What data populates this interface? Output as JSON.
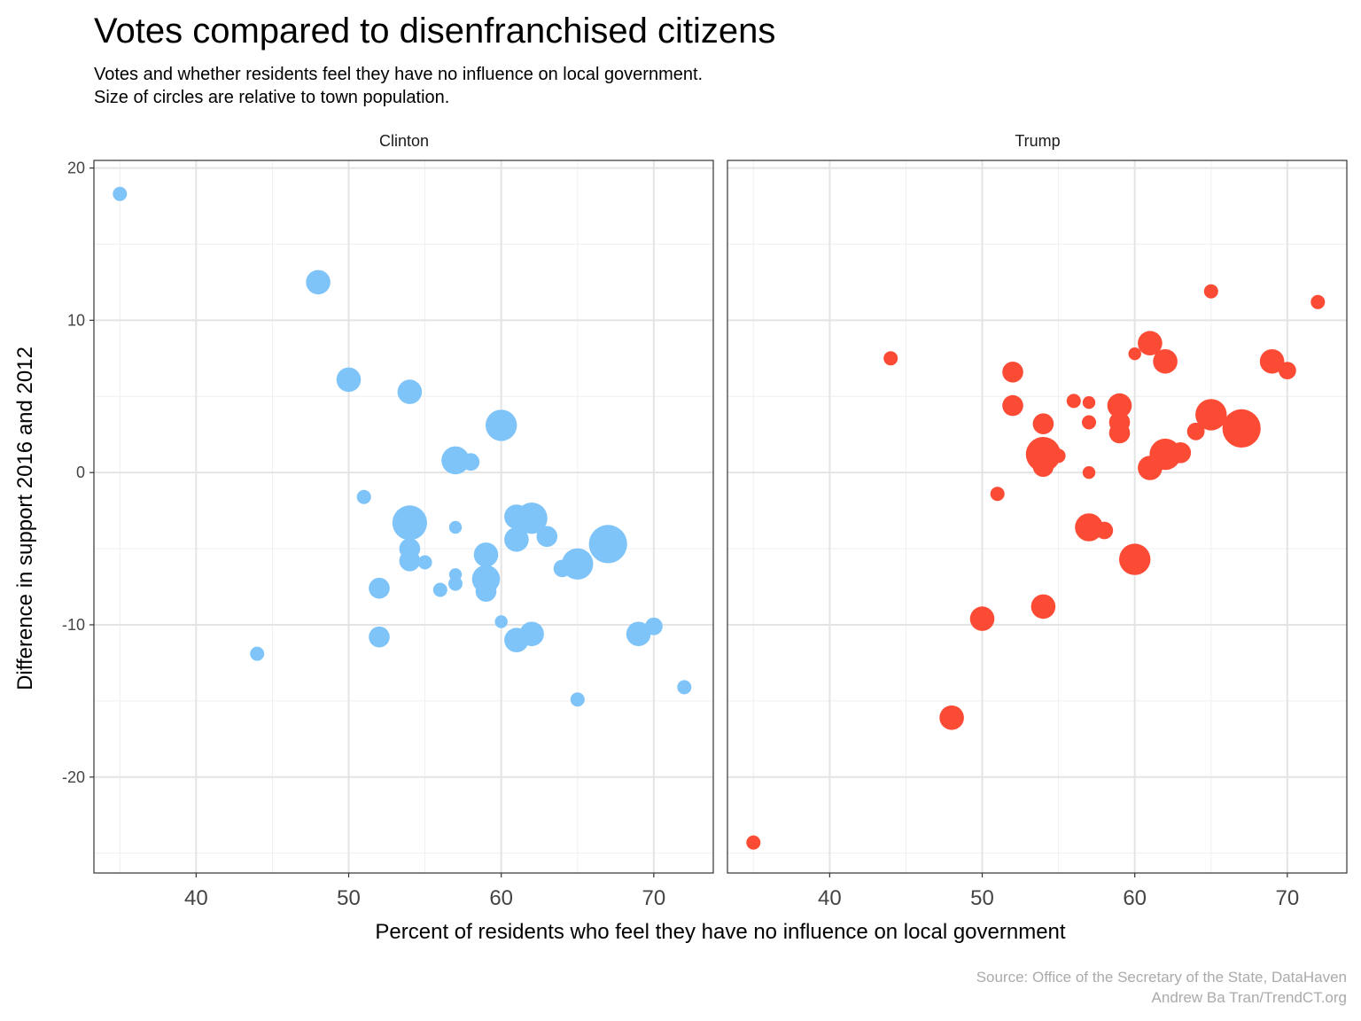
{
  "chart_data": {
    "type": "scatter",
    "title": "Votes compared to disenfranchised citizens",
    "subtitle": [
      "Votes and whether residents feel they have no influence on local government.",
      "Size of circles are relative to town population."
    ],
    "xlabel": "Percent of residents who feel they have no influence on local government",
    "ylabel": "Difference in support 2016 and 2012",
    "xlim": [
      33.3,
      73.9
    ],
    "ylim": [
      -26.3,
      20.5
    ],
    "x_ticks": [
      40,
      50,
      60,
      70
    ],
    "x_tick_labels": [
      "40",
      "50",
      "60",
      "70"
    ],
    "y_ticks": [
      20,
      10,
      0,
      -10,
      -20
    ],
    "y_tick_labels": [
      "20",
      "10",
      "0",
      "-10",
      "-20"
    ],
    "grid": true,
    "size_encoding": "relative town population (1 = smallest, 5 = largest)",
    "caption": [
      "Source: Office of the Secretary of the State, DataHaven",
      "Andrew Ba Tran/TrendCT.org"
    ],
    "panels": [
      {
        "name": "Clinton",
        "color": "#7fc4f9",
        "points": [
          {
            "x": 35,
            "y": 18.3,
            "size": 1.5
          },
          {
            "x": 48,
            "y": 12.5,
            "size": 3
          },
          {
            "x": 50,
            "y": 6.1,
            "size": 3
          },
          {
            "x": 54,
            "y": 5.3,
            "size": 3
          },
          {
            "x": 60,
            "y": 3.1,
            "size": 4
          },
          {
            "x": 57,
            "y": 0.8,
            "size": 3.5
          },
          {
            "x": 58,
            "y": 0.7,
            "size": 2
          },
          {
            "x": 51,
            "y": -1.6,
            "size": 1.5
          },
          {
            "x": 54,
            "y": -3.3,
            "size": 4.5
          },
          {
            "x": 57,
            "y": -3.6,
            "size": 1.3
          },
          {
            "x": 61,
            "y": -2.9,
            "size": 3
          },
          {
            "x": 62,
            "y": -3.0,
            "size": 4
          },
          {
            "x": 61,
            "y": -4.4,
            "size": 3
          },
          {
            "x": 63,
            "y": -4.2,
            "size": 2.5
          },
          {
            "x": 67,
            "y": -4.7,
            "size": 5
          },
          {
            "x": 54,
            "y": -5.0,
            "size": 2.5
          },
          {
            "x": 54,
            "y": -5.8,
            "size": 2.5
          },
          {
            "x": 55,
            "y": -5.9,
            "size": 1.5
          },
          {
            "x": 59,
            "y": -5.4,
            "size": 3
          },
          {
            "x": 64,
            "y": -6.3,
            "size": 2
          },
          {
            "x": 65,
            "y": -6.0,
            "size": 4
          },
          {
            "x": 57,
            "y": -6.7,
            "size": 1.3
          },
          {
            "x": 59,
            "y": -7.0,
            "size": 3.5
          },
          {
            "x": 52,
            "y": -7.6,
            "size": 2.5
          },
          {
            "x": 56,
            "y": -7.7,
            "size": 1.5
          },
          {
            "x": 57,
            "y": -7.3,
            "size": 1.5
          },
          {
            "x": 59,
            "y": -7.8,
            "size": 2.5
          },
          {
            "x": 60,
            "y": -9.8,
            "size": 1.3
          },
          {
            "x": 70,
            "y": -10.1,
            "size": 2
          },
          {
            "x": 52,
            "y": -10.8,
            "size": 2.5
          },
          {
            "x": 61,
            "y": -11.0,
            "size": 3
          },
          {
            "x": 62,
            "y": -10.6,
            "size": 3
          },
          {
            "x": 69,
            "y": -10.6,
            "size": 3
          },
          {
            "x": 44,
            "y": -11.9,
            "size": 1.5
          },
          {
            "x": 72,
            "y": -14.1,
            "size": 1.5
          },
          {
            "x": 65,
            "y": -14.9,
            "size": 1.5
          }
        ]
      },
      {
        "name": "Trump",
        "color": "#fc4b35",
        "points": [
          {
            "x": 65,
            "y": 11.9,
            "size": 1.5
          },
          {
            "x": 72,
            "y": 11.2,
            "size": 1.5
          },
          {
            "x": 61,
            "y": 8.5,
            "size": 3
          },
          {
            "x": 44,
            "y": 7.5,
            "size": 1.5
          },
          {
            "x": 60,
            "y": 7.8,
            "size": 1.3
          },
          {
            "x": 62,
            "y": 7.3,
            "size": 3
          },
          {
            "x": 69,
            "y": 7.3,
            "size": 3
          },
          {
            "x": 70,
            "y": 6.7,
            "size": 2
          },
          {
            "x": 52,
            "y": 6.6,
            "size": 2.5
          },
          {
            "x": 56,
            "y": 4.7,
            "size": 1.5
          },
          {
            "x": 57,
            "y": 4.6,
            "size": 1.3
          },
          {
            "x": 52,
            "y": 4.4,
            "size": 2.5
          },
          {
            "x": 59,
            "y": 4.4,
            "size": 3
          },
          {
            "x": 65,
            "y": 3.8,
            "size": 4
          },
          {
            "x": 54,
            "y": 3.2,
            "size": 2.5
          },
          {
            "x": 57,
            "y": 3.3,
            "size": 1.5
          },
          {
            "x": 59,
            "y": 3.3,
            "size": 2.5
          },
          {
            "x": 67,
            "y": 2.9,
            "size": 5
          },
          {
            "x": 64,
            "y": 2.7,
            "size": 2
          },
          {
            "x": 59,
            "y": 2.6,
            "size": 2.5
          },
          {
            "x": 54,
            "y": 1.2,
            "size": 4.5
          },
          {
            "x": 55,
            "y": 1.1,
            "size": 1.5
          },
          {
            "x": 62,
            "y": 1.2,
            "size": 4
          },
          {
            "x": 63,
            "y": 1.3,
            "size": 2.5
          },
          {
            "x": 54,
            "y": 0.4,
            "size": 2.5
          },
          {
            "x": 61,
            "y": 0.3,
            "size": 3
          },
          {
            "x": 57,
            "y": 0.0,
            "size": 1.3
          },
          {
            "x": 51,
            "y": -1.4,
            "size": 1.5
          },
          {
            "x": 57,
            "y": -3.6,
            "size": 3.5
          },
          {
            "x": 58,
            "y": -3.8,
            "size": 2
          },
          {
            "x": 60,
            "y": -5.7,
            "size": 4
          },
          {
            "x": 54,
            "y": -8.8,
            "size": 3
          },
          {
            "x": 50,
            "y": -9.6,
            "size": 3
          },
          {
            "x": 48,
            "y": -16.1,
            "size": 3
          },
          {
            "x": 35,
            "y": -24.3,
            "size": 1.5
          }
        ]
      }
    ]
  }
}
